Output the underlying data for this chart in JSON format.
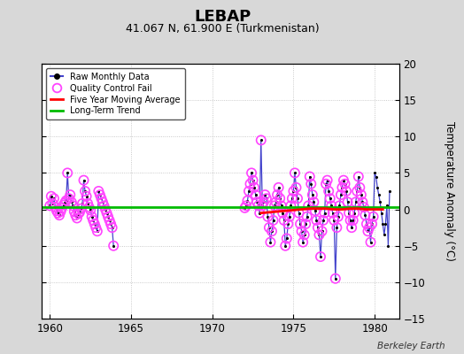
{
  "title": "LEBAP",
  "subtitle": "41.067 N, 61.900 E (Turkmenistan)",
  "ylabel": "Temperature Anomaly (°C)",
  "credit": "Berkeley Earth",
  "xlim": [
    1959.5,
    1981.5
  ],
  "ylim": [
    -15,
    20
  ],
  "yticks": [
    -15,
    -10,
    -5,
    0,
    5,
    10,
    15,
    20
  ],
  "xticks": [
    1960,
    1965,
    1970,
    1975,
    1980
  ],
  "bg_color": "#d8d8d8",
  "plot_bg_color": "#ffffff",
  "raw_color": "#4444cc",
  "raw_dot_color": "#000000",
  "qc_color": "#ff44ff",
  "ma_color": "#ff0000",
  "trend_color": "#00bb00",
  "segment1": [
    [
      1960.0,
      0.5
    ],
    [
      1960.083,
      1.8
    ],
    [
      1960.167,
      0.8
    ],
    [
      1960.25,
      1.5
    ],
    [
      1960.333,
      0.3
    ],
    [
      1960.417,
      -0.2
    ],
    [
      1960.5,
      -0.5
    ],
    [
      1960.583,
      -0.8
    ],
    [
      1960.667,
      -0.3
    ],
    [
      1960.75,
      0.2
    ],
    [
      1960.833,
      0.6
    ],
    [
      1960.917,
      0.9
    ],
    [
      1961.0,
      1.2
    ],
    [
      1961.083,
      5.0
    ],
    [
      1961.167,
      1.5
    ],
    [
      1961.25,
      2.0
    ],
    [
      1961.333,
      1.0
    ],
    [
      1961.417,
      0.5
    ],
    [
      1961.5,
      -0.3
    ],
    [
      1961.583,
      -0.8
    ],
    [
      1961.667,
      -1.2
    ],
    [
      1961.75,
      -0.6
    ],
    [
      1961.833,
      -0.4
    ],
    [
      1961.917,
      0.1
    ],
    [
      1962.0,
      0.8
    ],
    [
      1962.083,
      4.0
    ],
    [
      1962.167,
      2.5
    ],
    [
      1962.25,
      1.8
    ],
    [
      1962.333,
      0.8
    ],
    [
      1962.417,
      0.3
    ],
    [
      1962.5,
      -0.1
    ],
    [
      1962.583,
      -1.0
    ],
    [
      1962.667,
      -1.5
    ],
    [
      1962.75,
      -2.0
    ],
    [
      1962.833,
      -2.5
    ],
    [
      1962.917,
      -3.0
    ],
    [
      1963.0,
      2.5
    ],
    [
      1963.083,
      2.0
    ],
    [
      1963.167,
      1.5
    ],
    [
      1963.25,
      1.0
    ],
    [
      1963.333,
      0.5
    ],
    [
      1963.417,
      0.0
    ],
    [
      1963.5,
      -0.5
    ],
    [
      1963.583,
      -1.0
    ],
    [
      1963.667,
      -1.5
    ],
    [
      1963.75,
      -2.0
    ],
    [
      1963.833,
      -2.5
    ],
    [
      1963.917,
      -5.0
    ]
  ],
  "segment1_qc": [
    true,
    true,
    true,
    true,
    true,
    true,
    true,
    true,
    true,
    true,
    true,
    true,
    true,
    true,
    true,
    true,
    true,
    true,
    true,
    true,
    true,
    true,
    true,
    true,
    true,
    true,
    true,
    true,
    true,
    true,
    true,
    true,
    true,
    true,
    true,
    true,
    true,
    true,
    true,
    true,
    true,
    true,
    true,
    true,
    true,
    true,
    true,
    true
  ],
  "segment2": [
    [
      1972.0,
      0.2
    ],
    [
      1972.083,
      0.5
    ],
    [
      1972.167,
      1.2
    ],
    [
      1972.25,
      2.5
    ],
    [
      1972.333,
      3.5
    ],
    [
      1972.417,
      5.0
    ],
    [
      1972.5,
      4.0
    ],
    [
      1972.583,
      3.0
    ],
    [
      1972.667,
      2.0
    ],
    [
      1972.75,
      1.0
    ],
    [
      1972.833,
      0.5
    ],
    [
      1972.917,
      -0.5
    ],
    [
      1973.0,
      9.5
    ],
    [
      1973.083,
      0.5
    ],
    [
      1973.167,
      1.0
    ],
    [
      1973.25,
      2.0
    ],
    [
      1973.333,
      1.5
    ],
    [
      1973.417,
      -1.0
    ],
    [
      1973.5,
      -2.5
    ],
    [
      1973.583,
      -4.5
    ],
    [
      1973.667,
      -3.0
    ],
    [
      1973.75,
      -1.5
    ],
    [
      1973.833,
      0.5
    ],
    [
      1973.917,
      1.0
    ],
    [
      1974.0,
      2.0
    ],
    [
      1974.083,
      3.0
    ],
    [
      1974.167,
      1.5
    ],
    [
      1974.25,
      0.5
    ],
    [
      1974.333,
      -0.5
    ],
    [
      1974.417,
      -1.5
    ],
    [
      1974.5,
      -5.0
    ],
    [
      1974.583,
      -4.0
    ],
    [
      1974.667,
      -2.0
    ],
    [
      1974.75,
      -1.0
    ],
    [
      1974.833,
      0.5
    ],
    [
      1974.917,
      1.5
    ],
    [
      1975.0,
      2.5
    ],
    [
      1975.083,
      5.0
    ],
    [
      1975.167,
      3.0
    ],
    [
      1975.25,
      1.5
    ],
    [
      1975.333,
      -0.5
    ],
    [
      1975.417,
      -2.0
    ],
    [
      1975.5,
      -3.0
    ],
    [
      1975.583,
      -4.5
    ],
    [
      1975.667,
      -3.5
    ],
    [
      1975.75,
      -2.0
    ],
    [
      1975.833,
      -1.0
    ],
    [
      1975.917,
      0.5
    ],
    [
      1976.0,
      4.5
    ],
    [
      1976.083,
      3.5
    ],
    [
      1976.167,
      2.0
    ],
    [
      1976.25,
      1.0
    ],
    [
      1976.333,
      -0.2
    ],
    [
      1976.417,
      -1.5
    ],
    [
      1976.5,
      -2.5
    ],
    [
      1976.583,
      -3.5
    ],
    [
      1976.667,
      -6.5
    ],
    [
      1976.75,
      -3.0
    ],
    [
      1976.833,
      -1.5
    ],
    [
      1976.917,
      -0.5
    ],
    [
      1977.0,
      3.5
    ],
    [
      1977.083,
      4.0
    ],
    [
      1977.167,
      2.5
    ],
    [
      1977.25,
      1.5
    ],
    [
      1977.333,
      0.5
    ],
    [
      1977.417,
      -0.5
    ],
    [
      1977.5,
      -1.5
    ],
    [
      1977.583,
      -9.5
    ],
    [
      1977.667,
      -2.5
    ],
    [
      1977.75,
      -1.0
    ],
    [
      1977.833,
      0.5
    ],
    [
      1977.917,
      2.0
    ],
    [
      1978.0,
      3.0
    ],
    [
      1978.083,
      4.0
    ],
    [
      1978.167,
      3.5
    ],
    [
      1978.25,
      2.5
    ],
    [
      1978.333,
      1.0
    ],
    [
      1978.417,
      -0.5
    ],
    [
      1978.5,
      -1.5
    ],
    [
      1978.583,
      -2.5
    ],
    [
      1978.667,
      -1.5
    ],
    [
      1978.75,
      -0.5
    ],
    [
      1978.833,
      1.0
    ],
    [
      1978.917,
      2.5
    ],
    [
      1979.0,
      4.5
    ],
    [
      1979.083,
      3.0
    ],
    [
      1979.167,
      2.0
    ],
    [
      1979.25,
      1.0
    ],
    [
      1979.333,
      0.3
    ],
    [
      1979.417,
      -0.8
    ],
    [
      1979.5,
      -2.0
    ],
    [
      1979.583,
      -3.0
    ],
    [
      1979.667,
      -2.5
    ],
    [
      1979.75,
      -4.5
    ],
    [
      1979.833,
      -2.0
    ],
    [
      1979.917,
      -1.0
    ],
    [
      1980.0,
      5.0
    ],
    [
      1980.083,
      4.5
    ],
    [
      1980.167,
      3.0
    ],
    [
      1980.25,
      2.0
    ],
    [
      1980.333,
      1.0
    ],
    [
      1980.417,
      -0.5
    ],
    [
      1980.5,
      -2.0
    ],
    [
      1980.583,
      -3.5
    ],
    [
      1980.667,
      -2.0
    ],
    [
      1980.75,
      0.5
    ],
    [
      1980.833,
      -5.0
    ],
    [
      1980.917,
      2.5
    ]
  ],
  "segment2_qc": [
    true,
    true,
    true,
    true,
    true,
    true,
    true,
    true,
    true,
    true,
    true,
    true,
    true,
    true,
    true,
    true,
    true,
    true,
    true,
    true,
    true,
    true,
    true,
    true,
    true,
    true,
    true,
    true,
    true,
    true,
    true,
    true,
    true,
    true,
    true,
    true,
    true,
    true,
    true,
    true,
    true,
    true,
    true,
    true,
    true,
    true,
    true,
    true,
    true,
    true,
    true,
    true,
    true,
    true,
    true,
    true,
    true,
    true,
    true,
    true,
    true,
    true,
    true,
    true,
    true,
    true,
    true,
    true,
    true,
    true,
    true,
    true,
    true,
    true,
    true,
    true,
    true,
    true,
    true,
    true,
    true,
    true,
    true,
    true,
    true,
    true,
    true,
    true,
    true,
    true,
    true,
    true,
    true,
    true,
    true,
    true,
    false,
    false,
    false,
    false,
    false,
    false,
    false,
    false,
    false,
    false,
    false,
    false
  ],
  "ma_x": [
    1973.0,
    1973.5,
    1974.0,
    1974.5,
    1975.0,
    1975.5,
    1976.0,
    1976.5,
    1977.0,
    1977.5,
    1978.0,
    1978.5,
    1979.0,
    1979.5,
    1980.0,
    1980.5
  ],
  "ma_y": [
    -0.5,
    -0.4,
    -0.3,
    -0.2,
    -0.1,
    0.0,
    0.1,
    0.1,
    0.1,
    0.0,
    0.0,
    0.1,
    0.1,
    0.0,
    0.0,
    0.0
  ],
  "trend_y": 0.3
}
